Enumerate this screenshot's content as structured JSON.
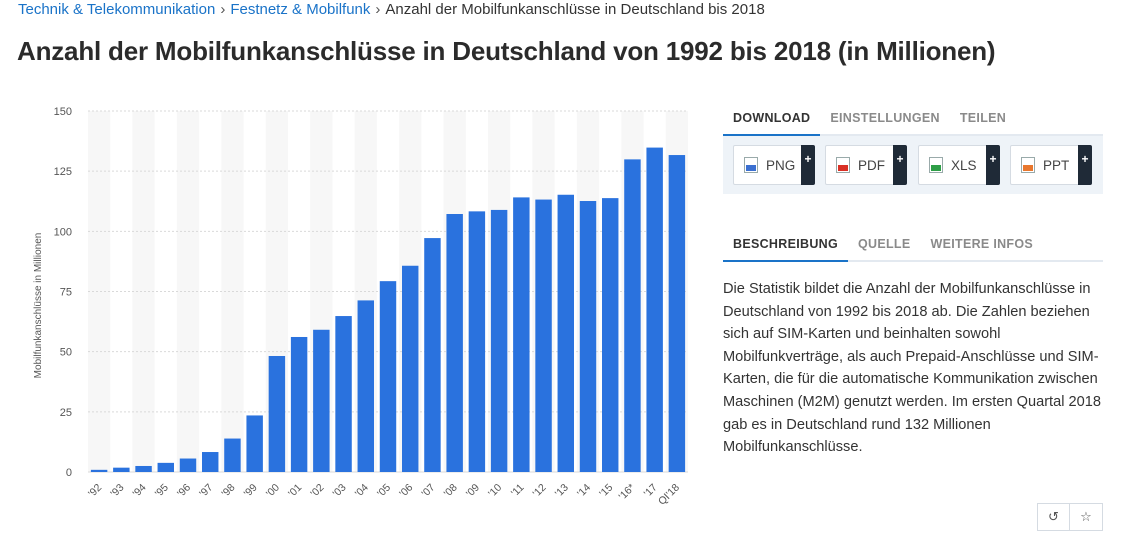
{
  "breadcrumb": {
    "items": [
      "Technik & Telekommunikation",
      "Festnetz & Mobilfunk"
    ],
    "current": "Anzahl der Mobilfunkanschlüsse in Deutschland bis 2018",
    "separator": "›"
  },
  "page_title": "Anzahl der Mobilfunkanschlüsse in Deutschland von 1992 bis 2018 (in Millionen)",
  "download": {
    "tabs": [
      "DOWNLOAD",
      "EINSTELLUNGEN",
      "TEILEN"
    ],
    "buttons": [
      {
        "label": "PNG",
        "icon": "png-file-icon",
        "color": "#3b6fd0"
      },
      {
        "label": "PDF",
        "icon": "pdf-file-icon",
        "color": "#d93025"
      },
      {
        "label": "XLS",
        "icon": "xls-file-icon",
        "color": "#2e9e47"
      },
      {
        "label": "PPT",
        "icon": "ppt-file-icon",
        "color": "#e8772e"
      }
    ],
    "plus": "+"
  },
  "info": {
    "tabs": [
      "BESCHREIBUNG",
      "QUELLE",
      "WEITERE INFOS"
    ],
    "description": "Die Statistik bildet die Anzahl der Mobilfunkanschlüsse in Deutschland von 1992 bis 2018 ab. Die Zahlen beziehen sich auf SIM-Karten und beinhalten sowohl Mobilfunkverträge, als auch Prepaid-Anschlüsse und SIM-Karten, die für die automatische Kommunikation zwischen Maschinen (M2M) genutzt werden. Im ersten Quartal 2018 gab es in Deutschland rund 132 Millionen Mobilfunkanschlüsse."
  },
  "icon_buttons": [
    {
      "name": "history-icon",
      "glyph": "↺"
    },
    {
      "name": "star-icon",
      "glyph": "☆"
    }
  ],
  "chart_data": {
    "type": "bar",
    "title": "Anzahl der Mobilfunkanschlüsse in Deutschland von 1992 bis 2018 (in Millionen)",
    "xlabel": "",
    "ylabel": "Mobilfunkanschlüsse in Millionen",
    "ylim": [
      0,
      150
    ],
    "yticks": [
      0,
      25,
      50,
      75,
      100,
      125,
      150
    ],
    "grid": true,
    "bar_color": "#2a72de",
    "categories": [
      "'92",
      "'93",
      "'94",
      "'95",
      "'96",
      "'97",
      "'98",
      "'99",
      "'00",
      "'01",
      "'02",
      "'03",
      "'04",
      "'05",
      "'06",
      "'07",
      "'08",
      "'09",
      "'10",
      "'11",
      "'12",
      "'13",
      "'14",
      "'15",
      "'16*",
      "'17",
      "QI'18"
    ],
    "values": [
      0.9,
      1.8,
      2.5,
      3.8,
      5.6,
      8.3,
      13.9,
      23.5,
      48.2,
      56.1,
      59.1,
      64.8,
      71.3,
      79.3,
      85.7,
      97.2,
      107.2,
      108.3,
      108.9,
      114.1,
      113.2,
      115.2,
      112.6,
      113.8,
      129.9,
      134.8,
      131.7
    ]
  }
}
